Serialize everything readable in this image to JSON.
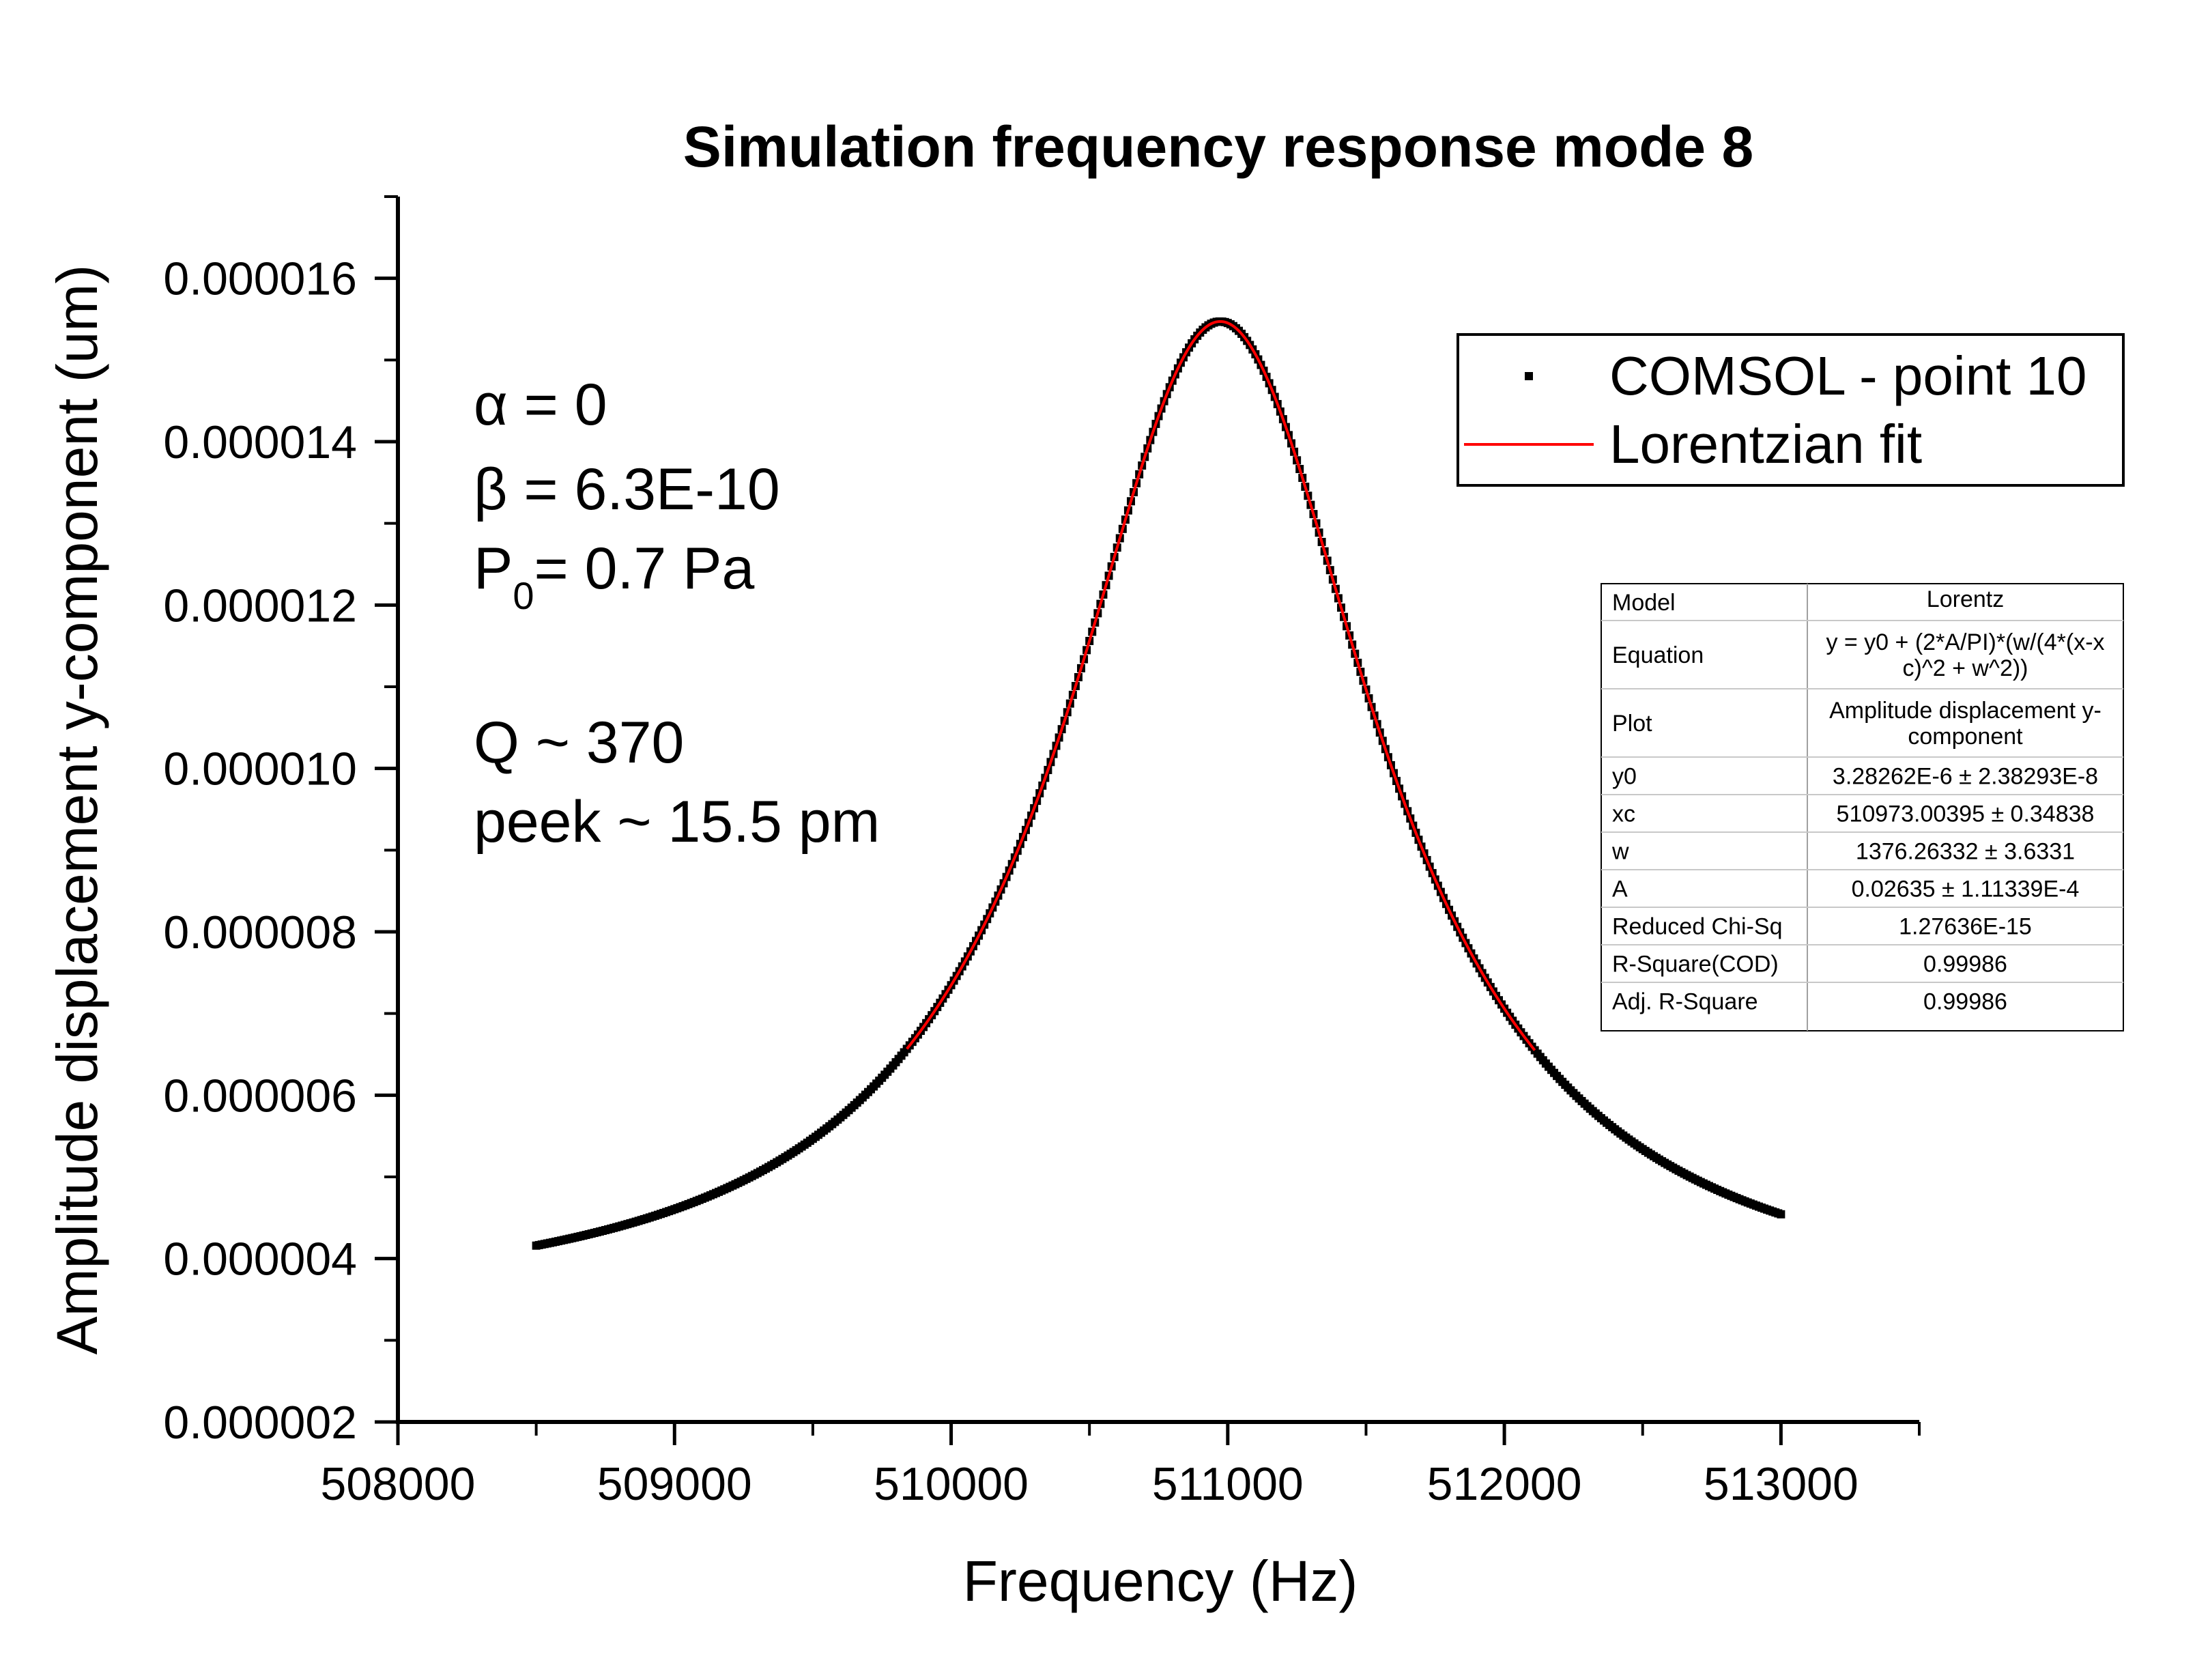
{
  "chart_data": {
    "type": "scatter",
    "title": "Simulation frequency response mode 8",
    "xlabel": "Frequency (Hz)",
    "ylabel": "Amplitude displacement y-component (um)",
    "xlim": [
      508000,
      513500
    ],
    "ylim": [
      2e-06,
      1.7e-05
    ],
    "x_ticks": [
      "508000",
      "509000",
      "510000",
      "511000",
      "512000",
      "513000"
    ],
    "y_ticks": [
      "0.000002",
      "0.000004",
      "0.000006",
      "0.000008",
      "0.000010",
      "0.000012",
      "0.000014",
      "0.000016"
    ],
    "legend_position": "top-right",
    "series": [
      {
        "name": "COMSOL - point 10",
        "kind": "points",
        "color": "#000000",
        "x_range": [
          508500,
          513000
        ],
        "x_step": 10,
        "model": "lorentz",
        "params": {
          "y0": 3.28262e-06,
          "xc": 510973.00395,
          "w": 1376.26332,
          "A": 0.02635
        }
      },
      {
        "name": "Lorentzian fit",
        "kind": "line",
        "color": "#ff0000",
        "x_range": [
          509840,
          512110
        ],
        "model": "lorentz",
        "params": {
          "y0": 3.28262e-06,
          "xc": 510973.00395,
          "w": 1376.26332,
          "A": 0.02635
        }
      }
    ],
    "annotations": {
      "alpha": "α = 0",
      "beta": "β = 6.3E-10",
      "p_main": "P",
      "p_sub": "0",
      "p_rest": "= 0.7 Pa",
      "q": "Q ~ 370",
      "peek": "peek ~ 15.5 pm"
    },
    "fit_table": {
      "rows": [
        {
          "label": "Model",
          "value": [
            "Lorentz"
          ]
        },
        {
          "label": "Equation",
          "value": [
            "y = y0 + (2*A/PI)*(w/(4*(x-x",
            "c)^2 + w^2))"
          ]
        },
        {
          "label": "Plot",
          "value": [
            "Amplitude displacement y-",
            "component"
          ]
        },
        {
          "label": "y0",
          "value": [
            "3.28262E-6 ± 2.38293E-8"
          ]
        },
        {
          "label": "xc",
          "value": [
            "510973.00395 ± 0.34838"
          ]
        },
        {
          "label": "w",
          "value": [
            "1376.26332 ± 3.6331"
          ]
        },
        {
          "label": "A",
          "value": [
            "0.02635 ± 1.11339E-4"
          ]
        },
        {
          "label": "Reduced Chi-Sq",
          "value": [
            "1.27636E-15"
          ]
        },
        {
          "label": "R-Square(COD)",
          "value": [
            "0.99986"
          ]
        },
        {
          "label": "Adj. R-Square",
          "value": [
            "0.99986"
          ]
        }
      ]
    }
  }
}
